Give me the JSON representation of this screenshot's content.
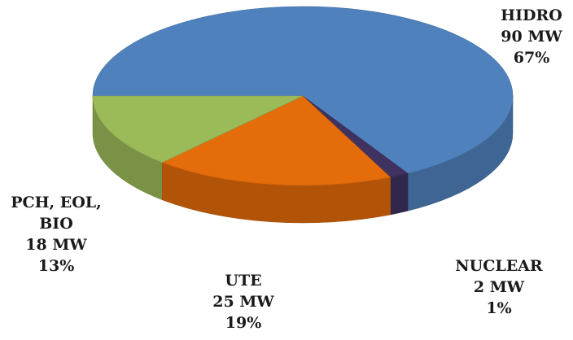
{
  "chart_data": {
    "type": "pie3d",
    "categories": [
      "HIDRO",
      "NUCLEAR",
      "UTE",
      "PCH, EOL, BIO"
    ],
    "values": [
      90,
      2,
      25,
      18
    ],
    "value_labels": [
      "90 MW",
      "2 MW",
      "25 MW",
      "18 MW"
    ],
    "shares": [
      67,
      1,
      19,
      13
    ],
    "share_labels": [
      "67%",
      "1%",
      "19%",
      "13%"
    ],
    "colors": [
      "#4f81bd",
      "#3f3160",
      "#e46c0a",
      "#9bbb59"
    ]
  }
}
